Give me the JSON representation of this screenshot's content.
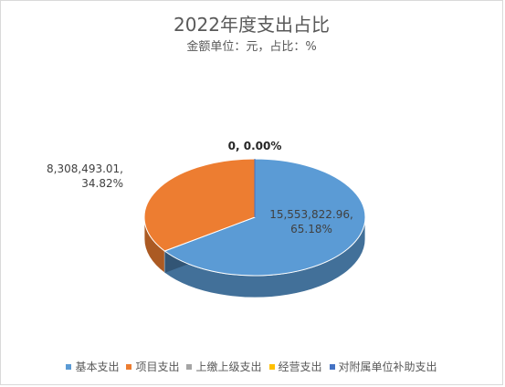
{
  "chart_data": {
    "type": "pie",
    "title": "2022年度支出占比",
    "subtitle": "金额单位：元，占比：%",
    "legend_position": "bottom",
    "series": [
      {
        "name": "基本支出",
        "value": 15553822.96,
        "percent": 65.18,
        "label": "15,553,822.96,\n65.18%",
        "color": "#5B9BD5"
      },
      {
        "name": "项目支出",
        "value": 8308493.01,
        "percent": 34.82,
        "label": "8,308,493.01,\n34.82%",
        "color": "#ED7D31"
      },
      {
        "name": "上缴上级支出",
        "value": 0,
        "percent": 0.0,
        "label": "0, 0.00%",
        "color": "#A5A5A5"
      },
      {
        "name": "经营支出",
        "value": 0,
        "percent": 0.0,
        "label": "",
        "color": "#FFC000"
      },
      {
        "name": "对附属单位补助支出",
        "value": 0,
        "percent": 0.0,
        "label": "",
        "color": "#4472C4"
      }
    ]
  }
}
